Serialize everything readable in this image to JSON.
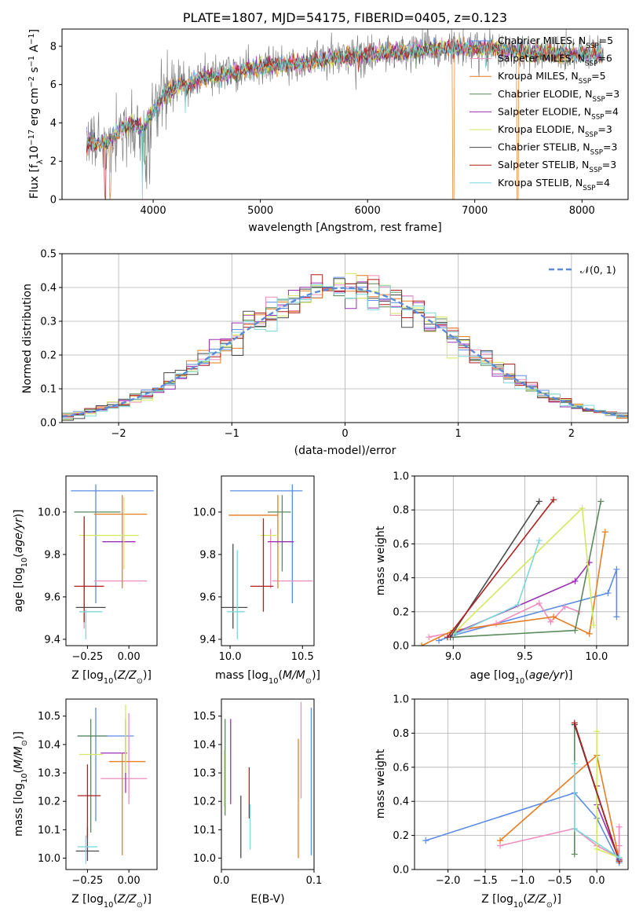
{
  "palette": {
    "Chabrier MILES": "#5b8ce6",
    "Salpeter MILES": "#ef8ebe",
    "Kroupa MILES": "#e67e22",
    "Chabrier ELODIE": "#5a8a5a",
    "Salpeter ELODIE": "#9b30b4",
    "Kroupa ELODIE": "#d6e860",
    "Chabrier STELIB": "#4a4a4a",
    "Salpeter STELIB": "#b01e1e",
    "Kroupa STELIB": "#7dd8dc",
    "normal_curve": "#5b8bd6",
    "grid": "#b0b0b0",
    "observed_spectrum": "#808080"
  },
  "chart_data": [
    {
      "id": "spectrum",
      "type": "line",
      "title": "PLATE=1807, MJD=54175, FIBERID=0405, z=0.123",
      "xlabel": "wavelength [Angstrom, rest frame]",
      "ylabel": "Flux [f_λ10⁻¹⁷ erg cm⁻² s⁻¹ A⁻¹]",
      "xlim": [
        3150,
        8430
      ],
      "ylim": [
        0,
        8.9
      ],
      "xticks": [
        4000,
        5000,
        6000,
        7000,
        8000
      ],
      "yticks": [
        0,
        2,
        4,
        6,
        8
      ],
      "grid": false,
      "legend_position": "right",
      "continuum": [
        [
          3380,
          3.0
        ],
        [
          3500,
          2.9
        ],
        [
          3600,
          3.1
        ],
        [
          3700,
          3.7
        ],
        [
          3800,
          4.0
        ],
        [
          3900,
          3.7
        ],
        [
          4000,
          4.6
        ],
        [
          4100,
          5.4
        ],
        [
          4200,
          5.9
        ],
        [
          4300,
          6.0
        ],
        [
          4400,
          6.2
        ],
        [
          4500,
          6.4
        ],
        [
          4700,
          6.6
        ],
        [
          4900,
          6.8
        ],
        [
          5100,
          7.0
        ],
        [
          5300,
          7.1
        ],
        [
          5500,
          7.2
        ],
        [
          5700,
          7.4
        ],
        [
          5900,
          7.5
        ],
        [
          6100,
          7.6
        ],
        [
          6300,
          7.7
        ],
        [
          6500,
          7.8
        ],
        [
          6700,
          7.9
        ],
        [
          6900,
          7.9
        ],
        [
          7100,
          7.9
        ],
        [
          7300,
          7.8
        ],
        [
          7600,
          7.7
        ],
        [
          7900,
          7.6
        ],
        [
          8200,
          7.6
        ]
      ],
      "series": [
        {
          "name": "Chabrier MILES, N_SSP=5",
          "legend_label": "Chabrier MILES, NSSP=5"
        },
        {
          "name": "Salpeter MILES, N_SSP=6",
          "legend_label": "Salpeter MILES, NSSP=6"
        },
        {
          "name": "Kroupa MILES, N_SSP=5",
          "legend_label": "Kroupa MILES, NSSP=5"
        },
        {
          "name": "Chabrier ELODIE, N_SSP=3",
          "legend_label": "Chabrier ELODIE, NSSP=3"
        },
        {
          "name": "Salpeter ELODIE, N_SSP=4",
          "legend_label": "Salpeter ELODIE, NSSP=4"
        },
        {
          "name": "Kroupa ELODIE, N_SSP=3",
          "legend_label": "Kroupa ELODIE, NSSP=3"
        },
        {
          "name": "Chabrier STELIB, N_SSP=3",
          "legend_label": "Chabrier STELIB, NSSP=3"
        },
        {
          "name": "Salpeter STELIB, N_SSP=3",
          "legend_label": "Salpeter STELIB, NSSP=3"
        },
        {
          "name": "Kroupa STELIB, N_SSP=4",
          "legend_label": "Kroupa STELIB, NSSP=4"
        }
      ]
    },
    {
      "id": "residuals",
      "type": "line",
      "xlabel": "(data-model)/error",
      "ylabel": "Normed distribution",
      "xlim": [
        -2.5,
        2.5
      ],
      "ylim": [
        0,
        0.5
      ],
      "xticks": [
        -2,
        -1,
        0,
        1,
        2
      ],
      "yticks": [
        0.0,
        0.1,
        0.2,
        0.3,
        0.4,
        0.5
      ],
      "grid": true,
      "legend": "𝒩(0, 1)",
      "legend_position": "top-right",
      "bin_width": 0.1
    },
    {
      "id": "age_vs_Z",
      "type": "scatter",
      "xlabel": "Z [log10(Z/Z⊙)]",
      "ylabel": "age  [log10(age/yr)]",
      "xlim": [
        -0.38,
        0.17
      ],
      "ylim": [
        9.37,
        10.17
      ],
      "xticks": [
        -0.25,
        0.0
      ],
      "yticks": [
        9.4,
        9.6,
        9.8,
        10.0
      ],
      "points": [
        {
          "series": "Chabrier MILES",
          "x": -0.1,
          "xerr": 0.25,
          "y": 10.1,
          "yerr": 0.0
        },
        {
          "series": "Chabrier MILES",
          "x": -0.2,
          "xerr": 0.0,
          "y": 9.85,
          "yerr": 0.28
        },
        {
          "series": "Salpeter MILES",
          "x": -0.05,
          "xerr": 0.16,
          "y": 9.675,
          "yerr": 0.0
        },
        {
          "series": "Salpeter MILES",
          "x": -0.27,
          "xerr": 0.0,
          "y": 9.7,
          "yerr": 0.25
        },
        {
          "series": "Kroupa MILES",
          "x": -0.05,
          "xerr": 0.16,
          "y": 9.99,
          "yerr": 0.0
        },
        {
          "series": "Kroupa MILES",
          "x": -0.04,
          "xerr": 0.0,
          "y": 9.86,
          "yerr": 0.22
        },
        {
          "series": "Chabrier ELODIE",
          "x": -0.19,
          "xerr": 0.14,
          "y": 10.0,
          "yerr": 0.0
        },
        {
          "series": "Salpeter ELODIE",
          "x": -0.06,
          "xerr": 0.1,
          "y": 9.86,
          "yerr": 0.0
        },
        {
          "series": "Kroupa ELODIE",
          "x": -0.12,
          "xerr": 0.18,
          "y": 9.89,
          "yerr": 0.0
        },
        {
          "series": "Kroupa ELODIE",
          "x": -0.03,
          "xerr": 0.0,
          "y": 9.9,
          "yerr": 0.17
        },
        {
          "series": "Chabrier STELIB",
          "x": -0.23,
          "xerr": 0.09,
          "y": 9.55,
          "yerr": 0.0
        },
        {
          "series": "Salpeter STELIB",
          "x": -0.24,
          "xerr": 0.09,
          "y": 9.65,
          "yerr": 0.0
        },
        {
          "series": "Salpeter STELIB",
          "x": -0.27,
          "xerr": 0.0,
          "y": 9.73,
          "yerr": 0.25
        },
        {
          "series": "Kroupa STELIB",
          "x": -0.23,
          "xerr": 0.07,
          "y": 9.53,
          "yerr": 0.0
        },
        {
          "series": "Kroupa STELIB",
          "x": -0.26,
          "xerr": 0.0,
          "y": 9.47,
          "yerr": 0.07
        }
      ]
    },
    {
      "id": "age_vs_mass",
      "type": "scatter",
      "xlabel": "mass [log10(M/M⊙)]",
      "ylabel": "",
      "xlim": [
        9.94,
        10.58
      ],
      "ylim": [
        9.37,
        10.17
      ],
      "xticks": [
        10.0,
        10.5
      ],
      "yticks": [
        9.4,
        9.6,
        9.8,
        10.0
      ],
      "points": [
        {
          "series": "Chabrier MILES",
          "x": 10.25,
          "xerr": 0.25,
          "y": 10.1,
          "yerr": 0.0
        },
        {
          "series": "Chabrier MILES",
          "x": 10.43,
          "xerr": 0.0,
          "y": 9.85,
          "yerr": 0.28
        },
        {
          "series": "Salpeter MILES",
          "x": 10.43,
          "xerr": 0.14,
          "y": 9.675,
          "yerr": 0.0
        },
        {
          "series": "Salpeter MILES",
          "x": 10.28,
          "xerr": 0.0,
          "y": 9.78,
          "yerr": 0.14
        },
        {
          "series": "Kroupa MILES",
          "x": 10.16,
          "xerr": 0.17,
          "y": 9.985,
          "yerr": 0.0
        },
        {
          "series": "Kroupa MILES",
          "x": 10.33,
          "xerr": 0.0,
          "y": 9.86,
          "yerr": 0.22
        },
        {
          "series": "Chabrier ELODIE",
          "x": 10.34,
          "xerr": 0.08,
          "y": 10.0,
          "yerr": 0.0
        },
        {
          "series": "Chabrier ELODIE",
          "x": 10.36,
          "xerr": 0.0,
          "y": 9.9,
          "yerr": 0.18
        },
        {
          "series": "Salpeter ELODIE",
          "x": 10.35,
          "xerr": 0.09,
          "y": 9.86,
          "yerr": 0.0
        },
        {
          "series": "Kroupa ELODIE",
          "x": 10.27,
          "xerr": 0.06,
          "y": 9.89,
          "yerr": 0.0
        },
        {
          "series": "Chabrier STELIB",
          "x": 10.03,
          "xerr": 0.09,
          "y": 9.55,
          "yerr": 0.0
        },
        {
          "series": "Chabrier STELIB",
          "x": 10.02,
          "xerr": 0.0,
          "y": 9.65,
          "yerr": 0.2
        },
        {
          "series": "Salpeter STELIB",
          "x": 10.22,
          "xerr": 0.08,
          "y": 9.65,
          "yerr": 0.0
        },
        {
          "series": "Salpeter STELIB",
          "x": 10.23,
          "xerr": 0.0,
          "y": 9.75,
          "yerr": 0.22
        },
        {
          "series": "Kroupa STELIB",
          "x": 10.04,
          "xerr": 0.06,
          "y": 9.53,
          "yerr": 0.0
        },
        {
          "series": "Kroupa STELIB",
          "x": 10.05,
          "xerr": 0.0,
          "y": 9.61,
          "yerr": 0.21
        }
      ]
    },
    {
      "id": "massweight_vs_age",
      "type": "line",
      "xlabel": "age  [log10(age/yr)]",
      "ylabel": "mass weight",
      "xlim": [
        8.73,
        10.22
      ],
      "ylim": [
        0,
        1.0
      ],
      "xticks": [
        9.0,
        9.5,
        10.0
      ],
      "yticks": [
        0.0,
        0.2,
        0.4,
        0.6,
        0.8,
        1.0
      ],
      "grid": true,
      "series": [
        {
          "name": "Chabrier MILES",
          "x": [
            8.9,
            9.0,
            10.08,
            10.14,
            10.14
          ],
          "y": [
            0.03,
            0.06,
            0.31,
            0.45,
            0.17
          ]
        },
        {
          "name": "Salpeter MILES",
          "x": [
            8.83,
            9.3,
            9.6,
            9.68,
            9.78,
            9.88
          ],
          "y": [
            0.05,
            0.13,
            0.25,
            0.14,
            0.23,
            0.2
          ]
        },
        {
          "name": "Kroupa MILES",
          "x": [
            8.78,
            9.0,
            9.7,
            9.95,
            10.06
          ],
          "y": [
            0.0,
            0.09,
            0.17,
            0.07,
            0.67
          ]
        },
        {
          "name": "Chabrier ELODIE",
          "x": [
            9.0,
            9.85,
            10.03
          ],
          "y": [
            0.05,
            0.09,
            0.85
          ]
        },
        {
          "name": "Salpeter ELODIE",
          "x": [
            9.0,
            9.85,
            9.95
          ],
          "y": [
            0.07,
            0.38,
            0.49
          ]
        },
        {
          "name": "Kroupa ELODIE",
          "x": [
            9.0,
            9.9,
            9.98
          ],
          "y": [
            0.07,
            0.81,
            0.12
          ]
        },
        {
          "name": "Chabrier STELIB",
          "x": [
            8.98,
            9.6
          ],
          "y": [
            0.05,
            0.85
          ]
        },
        {
          "name": "Salpeter STELIB",
          "x": [
            8.96,
            9.7
          ],
          "y": [
            0.05,
            0.86
          ]
        },
        {
          "name": "Kroupa STELIB",
          "x": [
            9.02,
            9.45,
            9.6
          ],
          "y": [
            0.07,
            0.24,
            0.62
          ]
        }
      ]
    },
    {
      "id": "mass_vs_Z",
      "type": "scatter",
      "xlabel": "Z [log10(Z/Z⊙)]",
      "ylabel": "mass [log10(M/M⊙)]",
      "xlim": [
        -0.38,
        0.17
      ],
      "ylim": [
        9.96,
        10.56
      ],
      "xticks": [
        -0.25,
        0.0
      ],
      "yticks": [
        10.0,
        10.1,
        10.2,
        10.3,
        10.4,
        10.5
      ],
      "points": [
        {
          "series": "Chabrier MILES",
          "x": -0.14,
          "xerr": 0.17,
          "y": 10.43,
          "yerr": 0.0
        },
        {
          "series": "Chabrier MILES",
          "x": -0.2,
          "xerr": 0.0,
          "y": 10.33,
          "yerr": 0.2
        },
        {
          "series": "Salpeter MILES",
          "x": -0.03,
          "xerr": 0.14,
          "y": 10.28,
          "yerr": 0.0
        },
        {
          "series": "Salpeter MILES",
          "x": 0.0,
          "xerr": 0.0,
          "y": 10.35,
          "yerr": 0.16
        },
        {
          "series": "Kroupa MILES",
          "x": -0.01,
          "xerr": 0.11,
          "y": 10.34,
          "yerr": 0.0
        },
        {
          "series": "Kroupa MILES",
          "x": -0.04,
          "xerr": 0.0,
          "y": 10.19,
          "yerr": 0.18
        },
        {
          "series": "Chabrier ELODIE",
          "x": -0.22,
          "xerr": 0.09,
          "y": 10.43,
          "yerr": 0.0
        },
        {
          "series": "Chabrier ELODIE",
          "x": -0.23,
          "xerr": 0.0,
          "y": 10.29,
          "yerr": 0.2
        },
        {
          "series": "Salpeter ELODIE",
          "x": -0.09,
          "xerr": 0.08,
          "y": 10.37,
          "yerr": 0.0
        },
        {
          "series": "Salpeter ELODIE",
          "x": -0.02,
          "xerr": 0.0,
          "y": 10.36,
          "yerr": 0.13
        },
        {
          "series": "Kroupa ELODIE",
          "x": -0.23,
          "xerr": 0.07,
          "y": 10.365,
          "yerr": 0.0
        },
        {
          "series": "Kroupa ELODIE",
          "x": -0.02,
          "xerr": 0.0,
          "y": 10.42,
          "yerr": 0.12
        },
        {
          "series": "Chabrier STELIB",
          "x": -0.25,
          "xerr": 0.07,
          "y": 10.025,
          "yerr": 0.0
        },
        {
          "series": "Chabrier STELIB",
          "x": -0.25,
          "xerr": 0.0,
          "y": 10.05,
          "yerr": 0.06
        },
        {
          "series": "Salpeter STELIB",
          "x": -0.24,
          "xerr": 0.07,
          "y": 10.22,
          "yerr": 0.0
        },
        {
          "series": "Salpeter STELIB",
          "x": -0.25,
          "xerr": 0.0,
          "y": 10.2,
          "yerr": 0.13
        },
        {
          "series": "Kroupa STELIB",
          "x": -0.25,
          "xerr": 0.06,
          "y": 10.04,
          "yerr": 0.0
        },
        {
          "series": "Kroupa STELIB",
          "x": -0.26,
          "xerr": 0.0,
          "y": 10.03,
          "yerr": 0.05
        }
      ]
    },
    {
      "id": "mass_vs_EBV",
      "type": "scatter",
      "xlabel": "E(B-V)",
      "ylabel": "",
      "xlim": [
        0.0,
        0.1
      ],
      "ylim": [
        9.96,
        10.56
      ],
      "xticks": [
        0.0,
        0.1
      ],
      "yticks": [
        10.0,
        10.1,
        10.2,
        10.3,
        10.4,
        10.5
      ],
      "points": [
        {
          "series": "Chabrier MILES",
          "x": 0.097,
          "xerr": 0.0,
          "y": 10.27,
          "yerr": 0.26
        },
        {
          "series": "Salpeter MILES",
          "x": 0.086,
          "xerr": 0.0,
          "y": 10.38,
          "yerr": 0.17
        },
        {
          "series": "Kroupa MILES",
          "x": 0.083,
          "xerr": 0.0,
          "y": 10.21,
          "yerr": 0.21
        },
        {
          "series": "Chabrier ELODIE",
          "x": 0.004,
          "xerr": 0.0,
          "y": 10.32,
          "yerr": 0.17
        },
        {
          "series": "Salpeter ELODIE",
          "x": 0.01,
          "xerr": 0.0,
          "y": 10.34,
          "yerr": 0.15
        },
        {
          "series": "Kroupa ELODIE",
          "x": 0.003,
          "xerr": 0.0,
          "y": 10.28,
          "yerr": 0.1
        },
        {
          "series": "Chabrier STELIB",
          "x": 0.021,
          "xerr": 0.0,
          "y": 10.11,
          "yerr": 0.11
        },
        {
          "series": "Salpeter STELIB",
          "x": 0.03,
          "xerr": 0.0,
          "y": 10.23,
          "yerr": 0.09
        },
        {
          "series": "Kroupa STELIB",
          "x": 0.031,
          "xerr": 0.0,
          "y": 10.11,
          "yerr": 0.08
        }
      ]
    },
    {
      "id": "massweight_vs_Z",
      "type": "line",
      "xlabel": "Z [log10(Z/Z⊙)]",
      "ylabel": "mass weight",
      "xlim": [
        -2.45,
        0.42
      ],
      "ylim": [
        0,
        1.0
      ],
      "xticks": [
        -2.0,
        -1.5,
        -1.0,
        -0.5,
        0.0
      ],
      "yticks": [
        0.0,
        0.2,
        0.4,
        0.6,
        0.8,
        1.0
      ],
      "grid": true,
      "series": [
        {
          "name": "Chabrier MILES",
          "x": [
            -2.3,
            -0.3,
            0.0,
            0.3
          ],
          "y": [
            0.17,
            0.45,
            0.3,
            0.04
          ]
        },
        {
          "name": "Salpeter MILES",
          "x": [
            -1.3,
            -0.3,
            0.0,
            0.3,
            0.3,
            0.3
          ],
          "y": [
            0.14,
            0.24,
            0.14,
            0.07,
            0.25,
            0.14
          ]
        },
        {
          "name": "Kroupa MILES",
          "x": [
            -1.3,
            0.0,
            0.3
          ],
          "y": [
            0.17,
            0.67,
            0.06
          ]
        },
        {
          "name": "Chabrier ELODIE",
          "x": [
            -0.3,
            -0.3,
            0.3
          ],
          "y": [
            0.09,
            0.85,
            0.05
          ]
        },
        {
          "name": "Salpeter ELODIE",
          "x": [
            0.0,
            0.0,
            0.3
          ],
          "y": [
            0.49,
            0.38,
            0.06
          ]
        },
        {
          "name": "Kroupa ELODIE",
          "x": [
            0.0,
            0.0,
            0.3
          ],
          "y": [
            0.81,
            0.12,
            0.07
          ]
        },
        {
          "name": "Chabrier STELIB",
          "x": [
            -0.3,
            0.3
          ],
          "y": [
            0.85,
            0.05
          ]
        },
        {
          "name": "Salpeter STELIB",
          "x": [
            -0.3,
            0.3
          ],
          "y": [
            0.86,
            0.05
          ]
        },
        {
          "name": "Kroupa STELIB",
          "x": [
            -0.3,
            -0.3,
            0.3
          ],
          "y": [
            0.62,
            0.24,
            0.07
          ]
        }
      ]
    }
  ]
}
